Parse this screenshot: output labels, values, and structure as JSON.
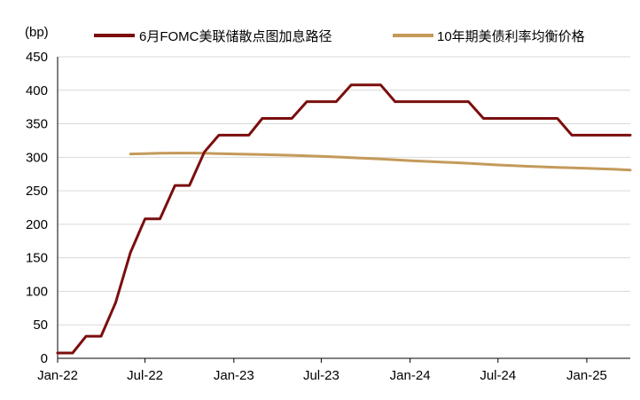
{
  "chart_data": {
    "type": "line",
    "unit_label": "(bp)",
    "ylim": [
      0,
      450
    ],
    "yticks": [
      0,
      50,
      100,
      150,
      200,
      250,
      300,
      350,
      400,
      450
    ],
    "xlim": [
      "2022-01-01",
      "2025-04-01"
    ],
    "xticks": [
      {
        "date": "2022-01-01",
        "label": "Jan-22"
      },
      {
        "date": "2022-07-01",
        "label": "Jul-22"
      },
      {
        "date": "2023-01-01",
        "label": "Jan-23"
      },
      {
        "date": "2023-07-01",
        "label": "Jul-23"
      },
      {
        "date": "2024-01-01",
        "label": "Jan-24"
      },
      {
        "date": "2024-07-01",
        "label": "Jul-24"
      },
      {
        "date": "2025-01-01",
        "label": "Jan-25"
      }
    ],
    "grid": "horizontal",
    "legend_position": "top",
    "series": [
      {
        "name": "6月FOMC美联储散点图加息路径",
        "color": "#7B0E0E",
        "points": [
          [
            "2022-01-01",
            8
          ],
          [
            "2022-02-01",
            8
          ],
          [
            "2022-03-01",
            33
          ],
          [
            "2022-04-01",
            33
          ],
          [
            "2022-05-01",
            83
          ],
          [
            "2022-06-01",
            158
          ],
          [
            "2022-07-01",
            208
          ],
          [
            "2022-08-01",
            208
          ],
          [
            "2022-09-01",
            258
          ],
          [
            "2022-10-01",
            258
          ],
          [
            "2022-11-01",
            308
          ],
          [
            "2022-12-01",
            333
          ],
          [
            "2023-01-01",
            333
          ],
          [
            "2023-02-01",
            333
          ],
          [
            "2023-03-01",
            358
          ],
          [
            "2023-04-01",
            358
          ],
          [
            "2023-05-01",
            358
          ],
          [
            "2023-06-01",
            383
          ],
          [
            "2023-07-01",
            383
          ],
          [
            "2023-08-01",
            383
          ],
          [
            "2023-09-01",
            408
          ],
          [
            "2023-10-01",
            408
          ],
          [
            "2023-11-01",
            408
          ],
          [
            "2023-12-01",
            383
          ],
          [
            "2024-01-01",
            383
          ],
          [
            "2024-02-01",
            383
          ],
          [
            "2024-03-01",
            383
          ],
          [
            "2024-04-01",
            383
          ],
          [
            "2024-05-01",
            383
          ],
          [
            "2024-06-01",
            358
          ],
          [
            "2024-07-01",
            358
          ],
          [
            "2024-08-01",
            358
          ],
          [
            "2024-09-01",
            358
          ],
          [
            "2024-10-01",
            358
          ],
          [
            "2024-11-01",
            358
          ],
          [
            "2024-12-01",
            333
          ],
          [
            "2025-01-01",
            333
          ],
          [
            "2025-02-01",
            333
          ],
          [
            "2025-03-01",
            333
          ],
          [
            "2025-04-01",
            333
          ]
        ]
      },
      {
        "name": "10年期美债利率均衡价格",
        "color": "#C49A5A",
        "points": [
          [
            "2022-06-01",
            305
          ],
          [
            "2022-07-01",
            305.5
          ],
          [
            "2022-08-01",
            306
          ],
          [
            "2022-09-01",
            306.3
          ],
          [
            "2022-10-01",
            306.3
          ],
          [
            "2022-11-01",
            306
          ],
          [
            "2022-12-01",
            305.5
          ],
          [
            "2023-01-01",
            305
          ],
          [
            "2023-03-01",
            304
          ],
          [
            "2023-05-01",
            303
          ],
          [
            "2023-07-01",
            301.5
          ],
          [
            "2023-09-01",
            299.5
          ],
          [
            "2023-11-01",
            297.5
          ],
          [
            "2024-01-01",
            295
          ],
          [
            "2024-03-01",
            293
          ],
          [
            "2024-05-01",
            291
          ],
          [
            "2024-07-01",
            288.5
          ],
          [
            "2024-09-01",
            286.5
          ],
          [
            "2024-11-01",
            285
          ],
          [
            "2025-01-01",
            283.5
          ],
          [
            "2025-03-01",
            282
          ],
          [
            "2025-04-01",
            281
          ]
        ]
      }
    ]
  }
}
